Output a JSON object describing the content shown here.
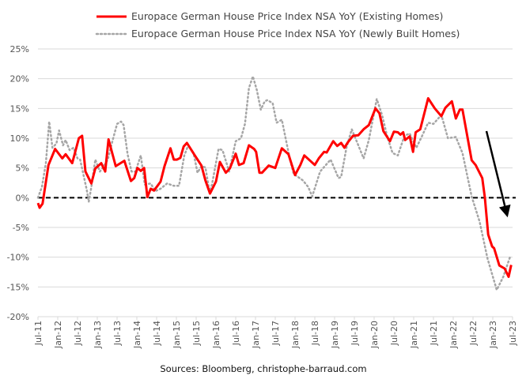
{
  "chart_data": {
    "type": "line",
    "title": "",
    "xlabel": "",
    "ylabel": "",
    "x_unit": "months since Jul-2011",
    "xlim": [
      0,
      144
    ],
    "ylim": [
      -20,
      25
    ],
    "y_ticks": [
      25,
      20,
      15,
      10,
      5,
      0,
      -5,
      -10,
      -15,
      -20
    ],
    "y_tick_labels": [
      "25%",
      "20%",
      "15%",
      "10%",
      "5%",
      "0%",
      "-5%",
      "-10%",
      "-15%",
      "-20%"
    ],
    "x_tick_labels": [
      "Jul-11",
      "Jan-12",
      "Jul-12",
      "Jan-13",
      "Jul-13",
      "Jan-14",
      "Jul-14",
      "Jan-15",
      "Jul-15",
      "Jan-16",
      "Jul-16",
      "Jan-17",
      "Jul-17",
      "Jan-18",
      "Jul-18",
      "Jan-19",
      "Jul-19",
      "Jan-20",
      "Jul-20",
      "Jan-21",
      "Jul-21",
      "Jan-22",
      "Jul-22",
      "Jan-23",
      "Jul-23"
    ],
    "grid": true,
    "legend_position": "top",
    "reference_line": {
      "y": 0,
      "style": "dashed"
    },
    "annotation": {
      "type": "arrow",
      "direction": "down",
      "color": "#000000"
    },
    "series": [
      {
        "name": "Europace German House Price Index NSA YoY (Existing Homes)",
        "color": "#ff0000",
        "style": "solid",
        "points": [
          [
            0,
            -0.9
          ],
          [
            0.5,
            -1.7
          ],
          [
            1.4,
            -1.0
          ],
          [
            3.2,
            5.5
          ],
          [
            5.2,
            8.2
          ],
          [
            7.4,
            6.6
          ],
          [
            8.4,
            7.3
          ],
          [
            10.4,
            5.8
          ],
          [
            12.4,
            10.0
          ],
          [
            13.4,
            10.4
          ],
          [
            14.4,
            4.4
          ],
          [
            16.2,
            2.4
          ],
          [
            17.4,
            4.9
          ],
          [
            19.2,
            5.8
          ],
          [
            20.4,
            4.4
          ],
          [
            21.4,
            9.8
          ],
          [
            23.6,
            5.3
          ],
          [
            26.2,
            6.2
          ],
          [
            28.2,
            2.8
          ],
          [
            29.2,
            3.3
          ],
          [
            30.2,
            5.0
          ],
          [
            31.2,
            4.5
          ],
          [
            32.2,
            5.0
          ],
          [
            33.2,
            0.1
          ],
          [
            34.2,
            1.5
          ],
          [
            35.2,
            1.2
          ],
          [
            37.2,
            2.7
          ],
          [
            38.4,
            5.3
          ],
          [
            40.2,
            8.3
          ],
          [
            41.2,
            6.4
          ],
          [
            42.2,
            6.4
          ],
          [
            43.2,
            6.7
          ],
          [
            44.2,
            8.6
          ],
          [
            45.2,
            9.2
          ],
          [
            47.6,
            7.1
          ],
          [
            49.6,
            5.4
          ],
          [
            50.8,
            2.9
          ],
          [
            52.2,
            0.7
          ],
          [
            54,
            2.7
          ],
          [
            55.2,
            6.0
          ],
          [
            57,
            4.2
          ],
          [
            58.2,
            4.9
          ],
          [
            60,
            7.4
          ],
          [
            61,
            5.5
          ],
          [
            62.4,
            5.8
          ],
          [
            64,
            8.8
          ],
          [
            65.6,
            8.2
          ],
          [
            66.2,
            7.7
          ],
          [
            67.2,
            4.2
          ],
          [
            68,
            4.2
          ],
          [
            70,
            5.4
          ],
          [
            72,
            5.0
          ],
          [
            74,
            8.3
          ],
          [
            76,
            7.3
          ],
          [
            78,
            3.8
          ],
          [
            79.6,
            5.5
          ],
          [
            80.8,
            7.1
          ],
          [
            84,
            5.5
          ],
          [
            85.2,
            6.6
          ],
          [
            86.8,
            7.7
          ],
          [
            87.6,
            7.6
          ],
          [
            89.6,
            9.5
          ],
          [
            90.8,
            8.7
          ],
          [
            92,
            9.2
          ],
          [
            93,
            8.4
          ],
          [
            94,
            9.3
          ],
          [
            95.6,
            10.4
          ],
          [
            97.2,
            10.5
          ],
          [
            98.8,
            11.5
          ],
          [
            100.4,
            12.2
          ],
          [
            102.4,
            15.0
          ],
          [
            103.6,
            14.2
          ],
          [
            104.8,
            11.2
          ],
          [
            106.8,
            9.5
          ],
          [
            108,
            11.1
          ],
          [
            109.2,
            11.0
          ],
          [
            110,
            10.6
          ],
          [
            110.8,
            11.0
          ],
          [
            111.4,
            9.7
          ],
          [
            112.8,
            10.3
          ],
          [
            113.8,
            7.7
          ],
          [
            114.6,
            11.0
          ],
          [
            116,
            11.5
          ],
          [
            118.4,
            16.7
          ],
          [
            120.4,
            15.0
          ],
          [
            122.4,
            13.7
          ],
          [
            123.6,
            15.1
          ],
          [
            125.6,
            16.2
          ],
          [
            126.8,
            13.3
          ],
          [
            128,
            14.8
          ],
          [
            128.8,
            14.8
          ],
          [
            131.6,
            6.3
          ],
          [
            132.8,
            5.5
          ],
          [
            134.8,
            3.3
          ],
          [
            135.6,
            0
          ],
          [
            136.6,
            -6.2
          ],
          [
            137.8,
            -8.2
          ],
          [
            138.4,
            -8.5
          ],
          [
            140,
            -11.4
          ],
          [
            141.6,
            -11.9
          ],
          [
            142.8,
            -13.3
          ],
          [
            143.6,
            -11.3
          ]
        ]
      },
      {
        "name": "Europace German House Price Index NSA YoY (Newly Built Homes)",
        "color": "#a6a6a6",
        "style": "dotted",
        "points": [
          [
            0,
            0
          ],
          [
            1.2,
            1.8
          ],
          [
            2.4,
            5.8
          ],
          [
            3.4,
            12.8
          ],
          [
            4.4,
            8.4
          ],
          [
            5.6,
            9.1
          ],
          [
            6.4,
            11.3
          ],
          [
            7.6,
            8.8
          ],
          [
            8.4,
            9.7
          ],
          [
            9.6,
            8.0
          ],
          [
            10.8,
            8.4
          ],
          [
            12,
            6.6
          ],
          [
            12.8,
            6.4
          ],
          [
            14.8,
            1.3
          ],
          [
            15.4,
            -0.7
          ],
          [
            16.2,
            1.8
          ],
          [
            17.4,
            6.4
          ],
          [
            18.8,
            4.4
          ],
          [
            20,
            5.3
          ],
          [
            21.2,
            6.4
          ],
          [
            22.4,
            9.1
          ],
          [
            24,
            12.4
          ],
          [
            25.2,
            12.8
          ],
          [
            26,
            12.2
          ],
          [
            27.2,
            7.3
          ],
          [
            28.4,
            4.4
          ],
          [
            29.6,
            4.4
          ],
          [
            31.2,
            7.1
          ],
          [
            32.4,
            2.2
          ],
          [
            34.2,
            2.4
          ],
          [
            35.6,
            1.1
          ],
          [
            37.2,
            1.5
          ],
          [
            39.2,
            2.4
          ],
          [
            41.2,
            2.0
          ],
          [
            42.8,
            2.0
          ],
          [
            44.4,
            7.1
          ],
          [
            45.6,
            8.8
          ],
          [
            47.2,
            7.5
          ],
          [
            48.4,
            4.2
          ],
          [
            49.6,
            5.3
          ],
          [
            50.8,
            5.1
          ],
          [
            52,
            1.1
          ],
          [
            52.8,
            2.2
          ],
          [
            54.8,
            8.2
          ],
          [
            56,
            8.0
          ],
          [
            58,
            4.4
          ],
          [
            60,
            9.5
          ],
          [
            61.6,
            10.0
          ],
          [
            62.8,
            12.4
          ],
          [
            64,
            18.4
          ],
          [
            65.2,
            20.4
          ],
          [
            66.4,
            18.1
          ],
          [
            67.6,
            14.8
          ],
          [
            68.8,
            16.2
          ],
          [
            69.6,
            16.4
          ],
          [
            71.2,
            15.9
          ],
          [
            72.4,
            12.6
          ],
          [
            74,
            13.1
          ],
          [
            76.4,
            6.6
          ],
          [
            77.6,
            4.0
          ],
          [
            80.4,
            2.9
          ],
          [
            82,
            1.8
          ],
          [
            83.2,
            0.2
          ],
          [
            85.6,
            4.4
          ],
          [
            88.8,
            6.4
          ],
          [
            91.2,
            3.3
          ],
          [
            92,
            3.5
          ],
          [
            93.6,
            8.4
          ],
          [
            95.2,
            11.5
          ],
          [
            97.2,
            8.8
          ],
          [
            98.8,
            6.6
          ],
          [
            100.4,
            9.7
          ],
          [
            102.8,
            16.6
          ],
          [
            104.4,
            13.9
          ],
          [
            106,
            10.2
          ],
          [
            107.6,
            7.5
          ],
          [
            109.2,
            7.1
          ],
          [
            111.2,
            10.4
          ],
          [
            112.8,
            10.8
          ],
          [
            114.8,
            8.4
          ],
          [
            116.4,
            10.2
          ],
          [
            118.4,
            12.6
          ],
          [
            120,
            12.4
          ],
          [
            122.4,
            13.9
          ],
          [
            124.4,
            10.0
          ],
          [
            126.8,
            10.2
          ],
          [
            128.8,
            7.5
          ],
          [
            131.6,
            0.2
          ],
          [
            134,
            -4.0
          ],
          [
            136.4,
            -10.2
          ],
          [
            139.2,
            -15.5
          ],
          [
            141.2,
            -13.3
          ],
          [
            143.2,
            -10.0
          ]
        ]
      }
    ]
  },
  "source": "Sources: Bloomberg, christophe-barraud.com"
}
